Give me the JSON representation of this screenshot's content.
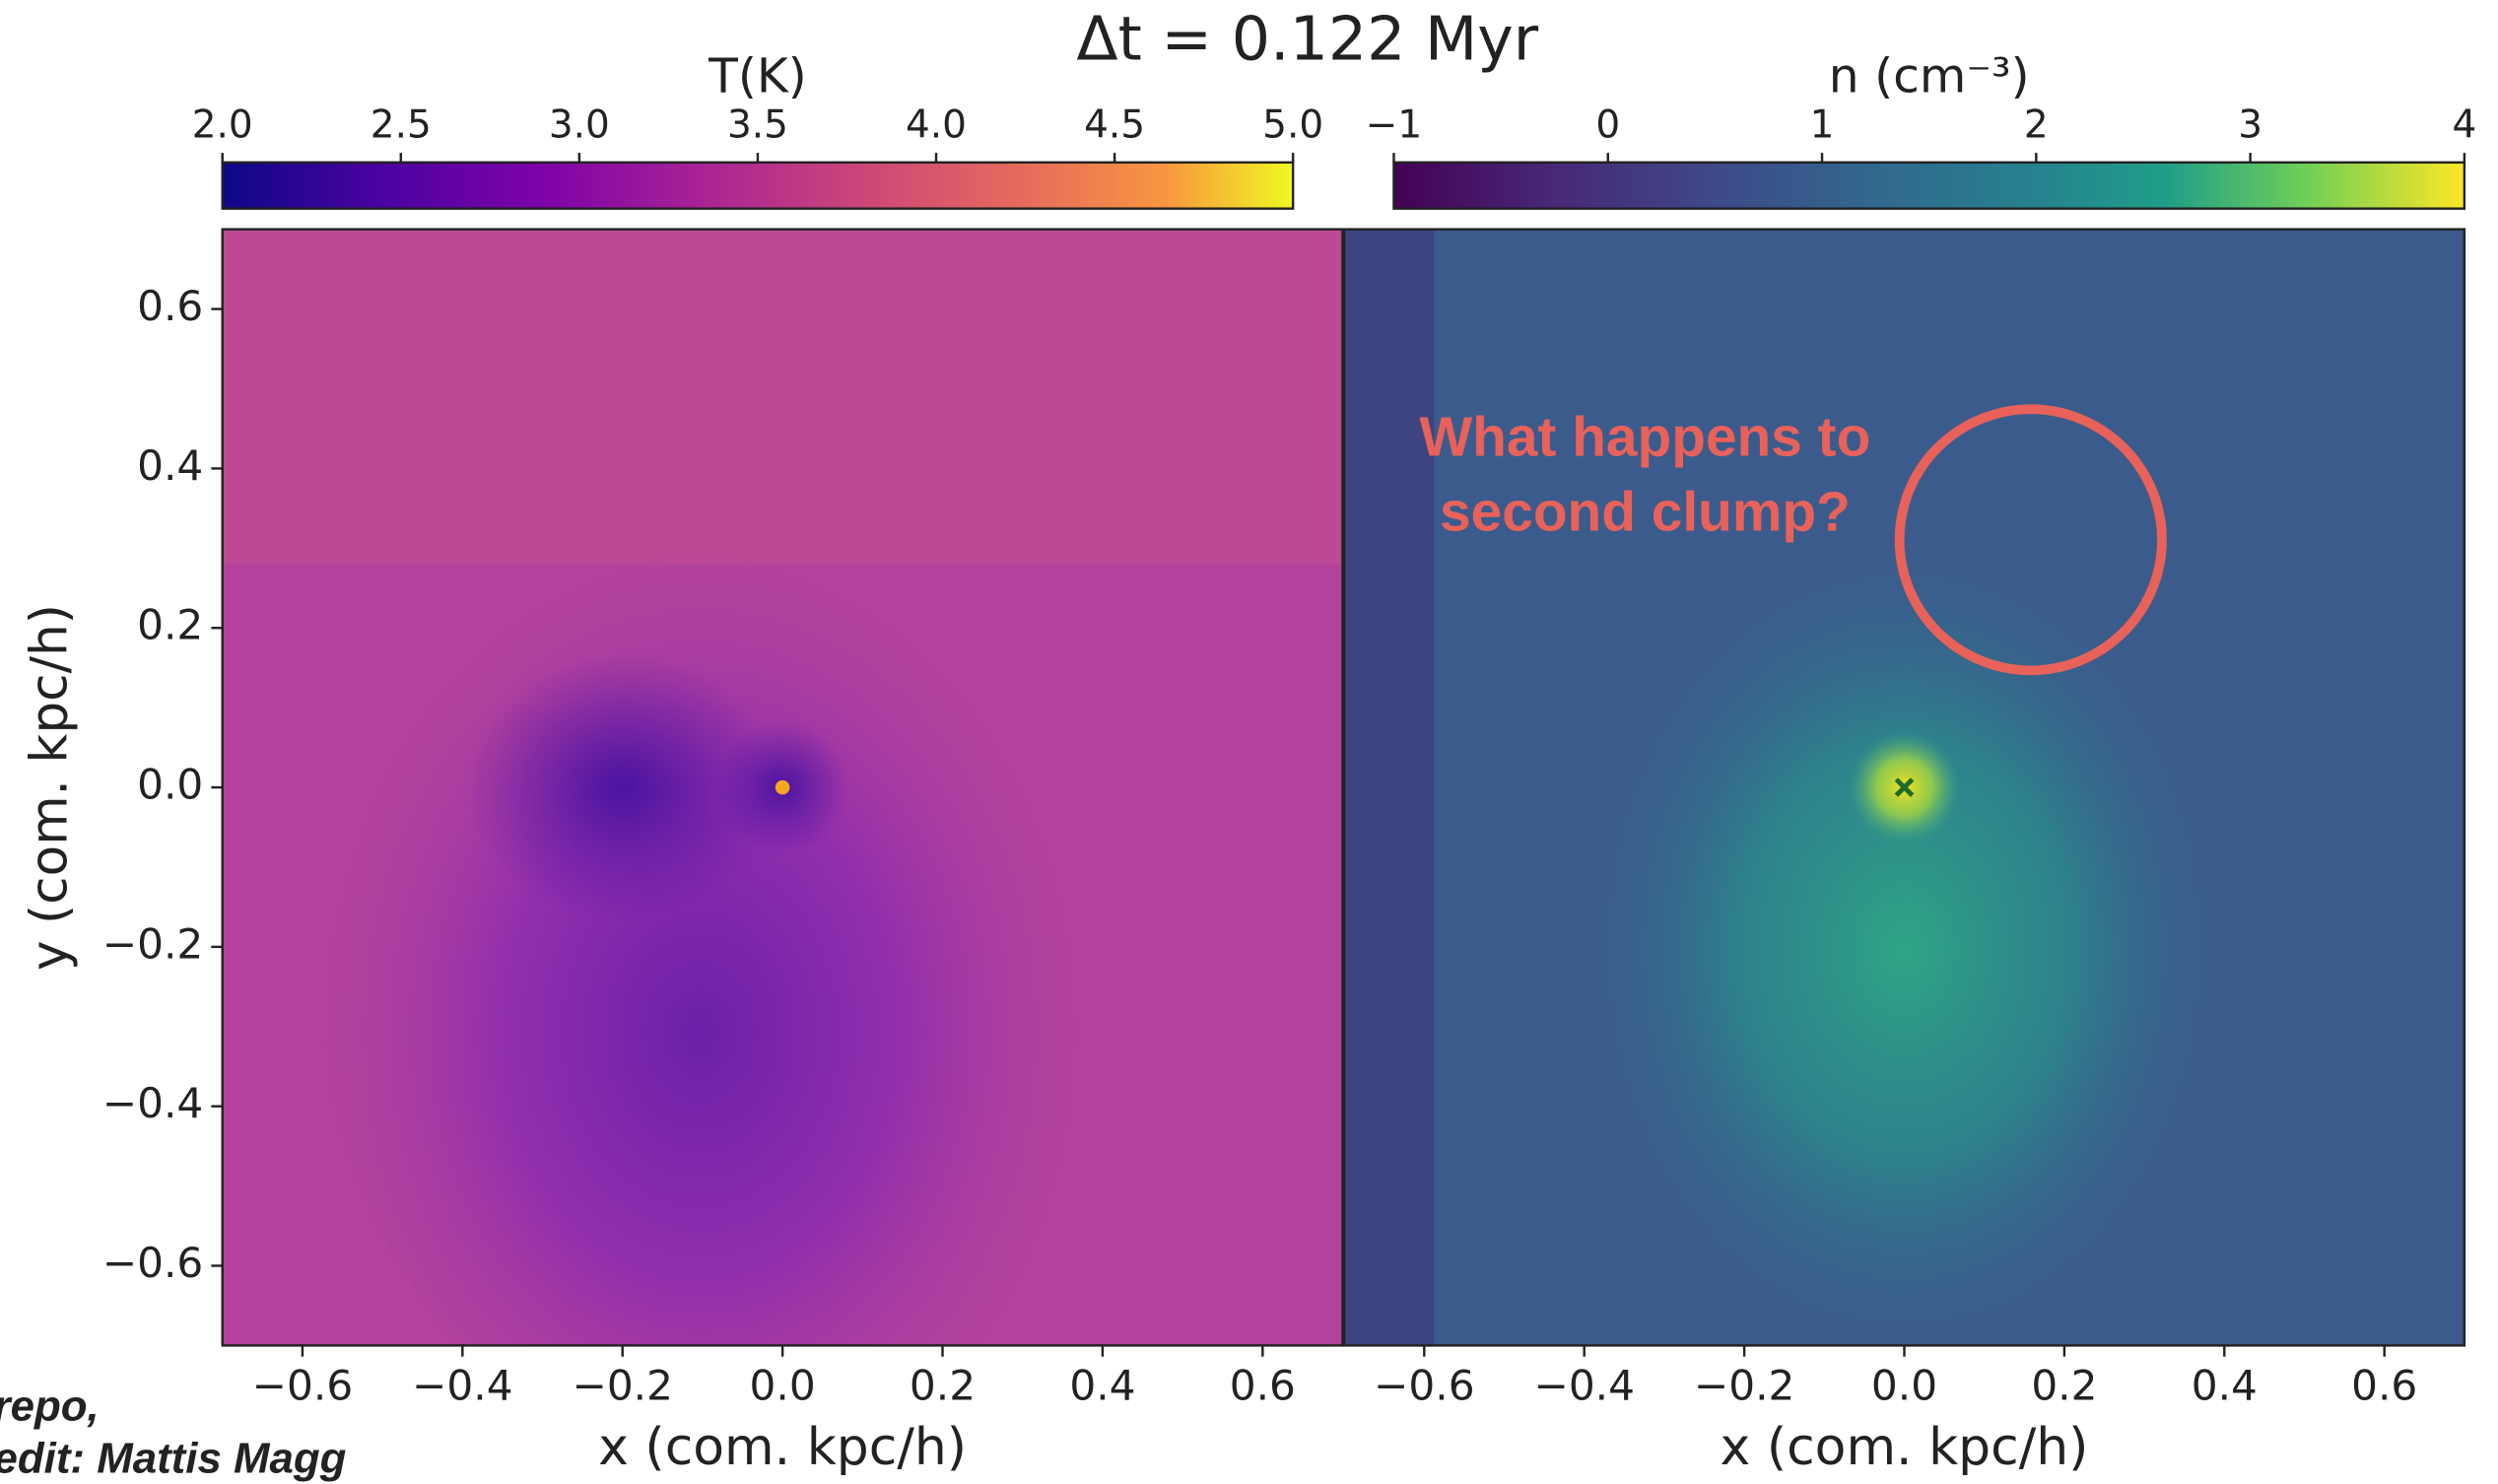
{
  "title": "Δt = 0.122 Myr",
  "annotation": {
    "lines": [
      "What happens to",
      "second clump?"
    ]
  },
  "credit": [
    "repo,",
    "edit: Mattis Magg"
  ],
  "chart_data": [
    {
      "type": "heatmap",
      "colorbar_label": "T(K)",
      "clim": [
        2.0,
        5.0
      ],
      "cticks": [
        {
          "value": 2.0,
          "label": "2.0"
        },
        2.5,
        {
          "value": 3.0,
          "label": "3.0"
        },
        3.5,
        {
          "value": 4.0,
          "label": "4.0"
        },
        4.5,
        {
          "value": 5.0,
          "label": "5.0"
        }
      ],
      "xlabel": "x (com. kpc/h)",
      "ylabel": "y (com. kpc/h)",
      "xlim": [
        -0.7,
        0.7
      ],
      "ylim": [
        -0.7,
        0.7
      ],
      "xticks": [
        {
          "value": -0.6,
          "label": "−0.6"
        },
        {
          "value": -0.4,
          "label": "−0.4"
        },
        {
          "value": -0.2,
          "label": "−0.2"
        },
        {
          "value": 0.0,
          "label": "0.0"
        },
        0.2,
        0.4,
        0.6
      ],
      "yticks": [
        {
          "value": -0.6,
          "label": "−0.6"
        },
        {
          "value": -0.4,
          "label": "−0.4"
        },
        {
          "value": -0.2,
          "label": "−0.2"
        },
        {
          "value": 0.0,
          "label": "0.0"
        },
        0.2,
        0.4,
        0.6
      ],
      "marker": {
        "x": 0,
        "y": 0,
        "color": "#f5a623"
      }
    },
    {
      "type": "heatmap",
      "colorbar_label": "n (cm⁻³)",
      "clim": [
        -1,
        4
      ],
      "cticks": [
        {
          "value": -1,
          "label": "−1"
        },
        0,
        1,
        2,
        3,
        4
      ],
      "xlabel": "x (com. kpc/h)",
      "xlim": [
        -0.7,
        0.7
      ],
      "ylim": [
        -0.7,
        0.7
      ],
      "xticks": [
        {
          "value": -0.6,
          "label": "−0.6"
        },
        {
          "value": -0.4,
          "label": "−0.4"
        },
        {
          "value": -0.2,
          "label": "−0.2"
        },
        {
          "value": 0.0,
          "label": "0.0"
        },
        0.2,
        0.4,
        0.6
      ],
      "marker": {
        "x": 0,
        "y": 0,
        "color": "#1d6b2a"
      }
    }
  ]
}
